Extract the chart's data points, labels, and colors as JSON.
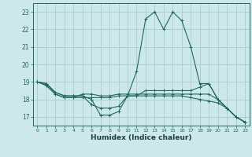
{
  "title": "",
  "xlabel": "Humidex (Indice chaleur)",
  "xlim": [
    -0.5,
    23.5
  ],
  "ylim": [
    16.5,
    23.5
  ],
  "xticks": [
    0,
    1,
    2,
    3,
    4,
    5,
    6,
    7,
    8,
    9,
    10,
    11,
    12,
    13,
    14,
    15,
    16,
    17,
    18,
    19,
    20,
    21,
    22,
    23
  ],
  "yticks": [
    17,
    18,
    19,
    20,
    21,
    22,
    23
  ],
  "bg_color": "#cde8e8",
  "grid_color": "#aacccc",
  "line_color": "#1a6b5a",
  "lines": [
    [
      19.0,
      18.9,
      18.4,
      18.2,
      18.2,
      18.2,
      18.0,
      17.1,
      17.1,
      17.3,
      18.2,
      19.6,
      22.6,
      23.0,
      22.0,
      23.0,
      22.5,
      21.0,
      18.9,
      18.9,
      18.0,
      17.5,
      17.0,
      16.7
    ],
    [
      19.0,
      18.9,
      18.4,
      18.2,
      18.2,
      18.2,
      17.7,
      17.5,
      17.5,
      17.6,
      18.2,
      18.2,
      18.5,
      18.5,
      18.5,
      18.5,
      18.5,
      18.5,
      18.7,
      18.9,
      18.0,
      17.5,
      17.0,
      16.7
    ],
    [
      19.0,
      18.8,
      18.3,
      18.1,
      18.1,
      18.3,
      18.3,
      18.2,
      18.2,
      18.3,
      18.3,
      18.3,
      18.3,
      18.3,
      18.3,
      18.3,
      18.3,
      18.3,
      18.3,
      18.3,
      18.0,
      17.5,
      17.0,
      16.7
    ],
    [
      19.0,
      18.8,
      18.3,
      18.1,
      18.1,
      18.1,
      18.1,
      18.1,
      18.1,
      18.2,
      18.2,
      18.2,
      18.2,
      18.2,
      18.2,
      18.2,
      18.2,
      18.1,
      18.0,
      17.9,
      17.8,
      17.5,
      17.0,
      16.7
    ]
  ]
}
